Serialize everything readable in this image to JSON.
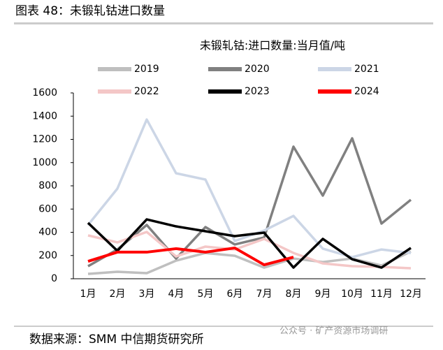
{
  "header": {
    "title": "图表 48：未锻轧钴进口数量"
  },
  "footer": {
    "source": "数据来源：SMM 中信期货研究所",
    "watermark": "公众号 · 矿产资源市场调研"
  },
  "chart_data": {
    "type": "line",
    "title": "未锻轧钴:进口数量:当月值/吨",
    "categories": [
      "1月",
      "2月",
      "3月",
      "4月",
      "5月",
      "6月",
      "7月",
      "8月",
      "9月",
      "10月",
      "11月",
      "12月"
    ],
    "series": [
      {
        "name": "2019",
        "color": "#bfbfbf",
        "values": [
          42,
          60,
          48,
          156,
          222,
          198,
          96,
          174,
          144,
          174,
          114,
          234
        ]
      },
      {
        "name": "2020",
        "color": "#808080",
        "values": [
          108,
          252,
          463,
          174,
          445,
          295,
          355,
          1137,
          716,
          1209,
          475,
          680
        ]
      },
      {
        "name": "2021",
        "color": "#ccd6e6",
        "values": [
          463,
          776,
          1371,
          908,
          854,
          325,
          415,
          541,
          259,
          186,
          252,
          222
        ]
      },
      {
        "name": "2022",
        "color": "#f4c7c7",
        "values": [
          373,
          313,
          403,
          192,
          277,
          252,
          343,
          222,
          132,
          108,
          102,
          90
        ]
      },
      {
        "name": "2023",
        "color": "#000000",
        "values": [
          481,
          240,
          511,
          451,
          409,
          367,
          397,
          96,
          343,
          168,
          96,
          265
        ]
      },
      {
        "name": "2024",
        "color": "#ff0000",
        "values": [
          150,
          229,
          229,
          259,
          229,
          265,
          120,
          186,
          null,
          null,
          null,
          null
        ]
      }
    ],
    "ylim": [
      0,
      1600
    ],
    "yticks": [
      0,
      200,
      400,
      600,
      800,
      1000,
      1200,
      1400,
      1600
    ],
    "grid": false,
    "legend": "top"
  }
}
